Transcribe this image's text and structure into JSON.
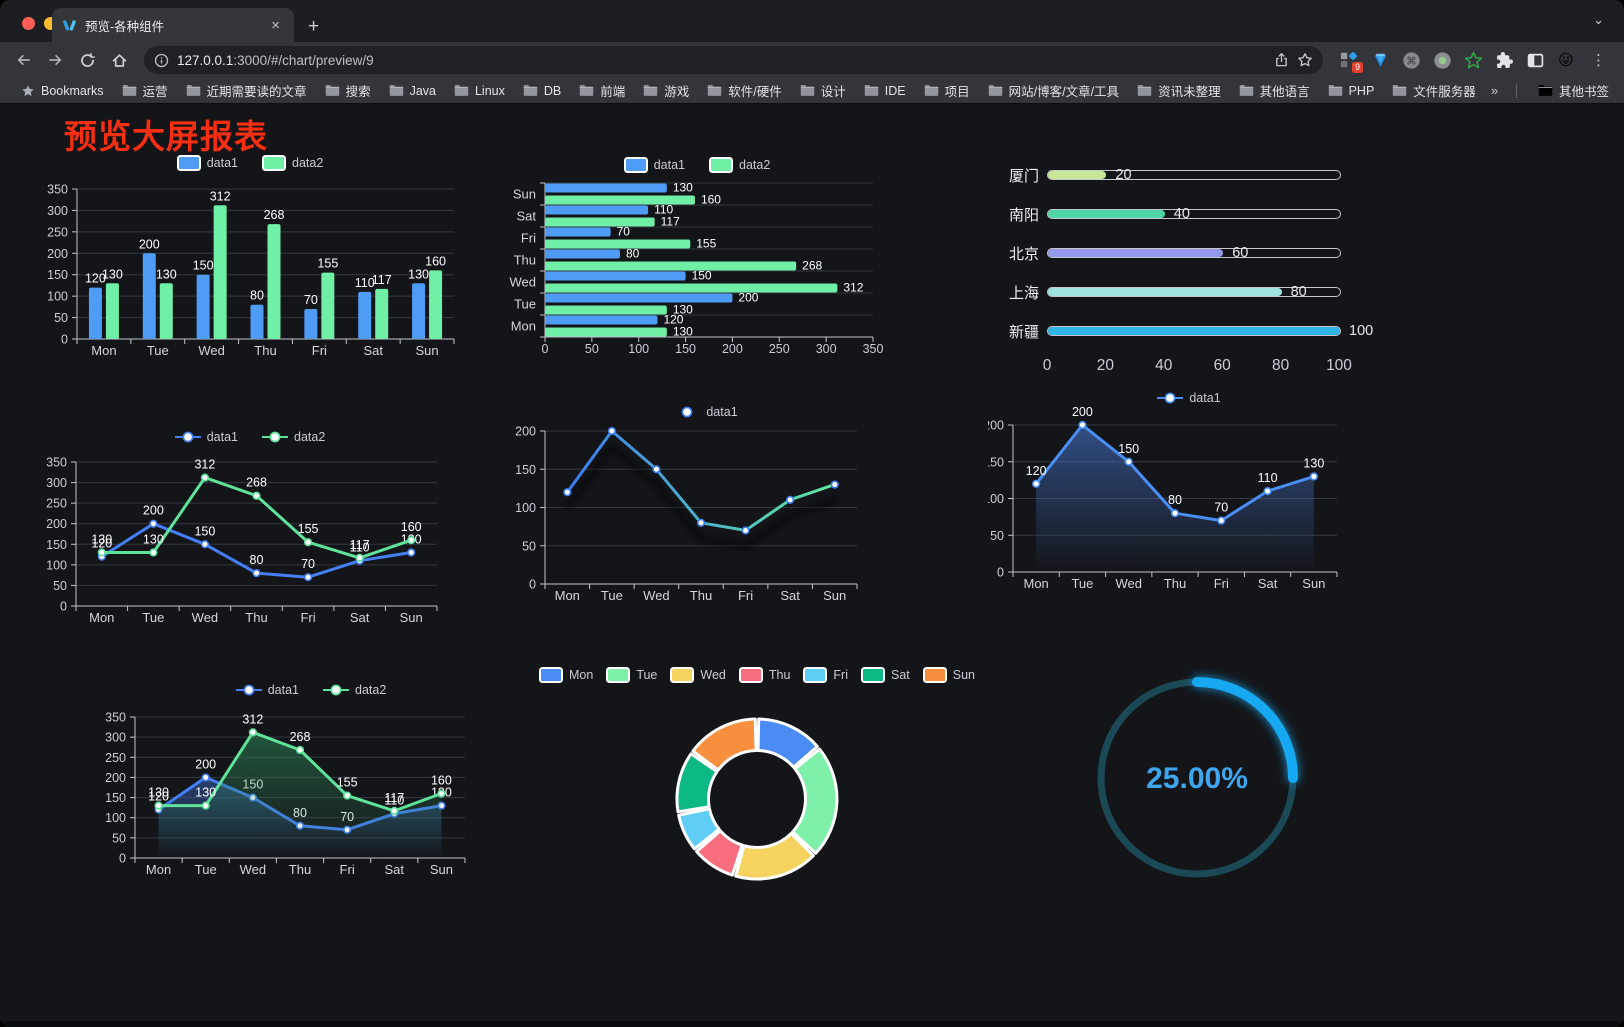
{
  "browser": {
    "traffic_lights": [
      "#ff5f57",
      "#febc2e",
      "#28c840"
    ],
    "tab_title": "预览-各种组件",
    "tab_close_glyph": "×",
    "new_tab_glyph": "+",
    "tab_list_chevron": "⌄",
    "url": {
      "host": "127.0.0.1",
      "rest": ":3000/#/chart/preview/9"
    },
    "extension_badge": "9",
    "profile_emoji": "😜",
    "menu_dots_glyph": "⋮",
    "bookmarks_bar": {
      "bookmarks_label": "Bookmarks",
      "folders": [
        "运营",
        "近期需要读的文章",
        "搜索",
        "Java",
        "Linux",
        "DB",
        "前端",
        "游戏",
        "软件/硬件",
        "设计",
        "IDE",
        "项目",
        "网站/博客/文章/工具",
        "资讯未整理",
        "其他语言",
        "PHP",
        "文件服务器"
      ],
      "overflow_chevron": "»",
      "other_bookmarks": "其他书签"
    }
  },
  "page": {
    "title": "预览大屏报表",
    "title_color": "#f62e12",
    "background": "#141519"
  },
  "theme": {
    "axis_color": "#c2c5cf",
    "grid_color": "#353842",
    "tick_label_color": "#ccced8",
    "category_label_color": "#d4d6de",
    "value_label_color": "#ffffff",
    "legend_text_color": "#c9ccd4"
  },
  "chart_data": [
    {
      "id": "c1",
      "type": "bar",
      "title": "",
      "categories": [
        "Mon",
        "Tue",
        "Wed",
        "Thu",
        "Fri",
        "Sat",
        "Sun"
      ],
      "series": [
        {
          "name": "data1",
          "color": "#4f9cf6",
          "values": [
            120,
            200,
            150,
            80,
            70,
            110,
            130
          ]
        },
        {
          "name": "data2",
          "color": "#70f0a6",
          "values": [
            130,
            130,
            312,
            268,
            155,
            117,
            160
          ]
        }
      ],
      "ylim": [
        0,
        350
      ],
      "yticks": [
        0,
        50,
        100,
        150,
        200,
        250,
        300,
        350
      ],
      "value_labels": true,
      "legend_position": "top",
      "grid": true
    },
    {
      "id": "c2",
      "type": "bar-horizontal",
      "categories": [
        "Mon",
        "Tue",
        "Wed",
        "Thu",
        "Fri",
        "Sat",
        "Sun"
      ],
      "display_order_top_to_bottom": [
        "Sun",
        "Sat",
        "Fri",
        "Thu",
        "Wed",
        "Tue",
        "Mon"
      ],
      "series": [
        {
          "name": "data1",
          "color": "#4f9cf6",
          "values": [
            120,
            200,
            150,
            80,
            70,
            110,
            130
          ]
        },
        {
          "name": "data2",
          "color": "#70f0a6",
          "values": [
            130,
            130,
            312,
            268,
            155,
            117,
            160
          ]
        }
      ],
      "xlim": [
        0,
        350
      ],
      "xticks": [
        0,
        50,
        100,
        150,
        200,
        250,
        300,
        350
      ],
      "value_labels": true,
      "legend_position": "top",
      "grid": true
    },
    {
      "id": "c3",
      "type": "progress",
      "items": [
        {
          "label": "厦门",
          "value": 20,
          "color": "#c5e796"
        },
        {
          "label": "南阳",
          "value": 40,
          "color": "#4fd6a7"
        },
        {
          "label": "北京",
          "value": 60,
          "color": "#9599ea"
        },
        {
          "label": "上海",
          "value": 80,
          "color": "#9fe4e0"
        },
        {
          "label": "新疆",
          "value": 100,
          "color": "#33b4e6"
        }
      ],
      "max": 100,
      "xticks": [
        0,
        20,
        40,
        60,
        80,
        100
      ]
    },
    {
      "id": "c4",
      "type": "line",
      "categories": [
        "Mon",
        "Tue",
        "Wed",
        "Thu",
        "Fri",
        "Sat",
        "Sun"
      ],
      "series": [
        {
          "name": "data1",
          "color": "#447ff5",
          "values": [
            120,
            200,
            150,
            80,
            70,
            110,
            130
          ]
        },
        {
          "name": "data2",
          "color": "#5fe39a",
          "values": [
            130,
            130,
            312,
            268,
            155,
            117,
            160
          ]
        }
      ],
      "ylim": [
        0,
        350
      ],
      "yticks": [
        0,
        50,
        100,
        150,
        200,
        250,
        300,
        350
      ],
      "value_labels": true,
      "legend_position": "top",
      "grid": true
    },
    {
      "id": "c5",
      "type": "line",
      "categories": [
        "Mon",
        "Tue",
        "Wed",
        "Thu",
        "Fri",
        "Sat",
        "Sun"
      ],
      "series": [
        {
          "name": "data1",
          "color_start": "#3a7bf2",
          "color_end": "#5fe9a1",
          "values": [
            120,
            200,
            150,
            80,
            70,
            110,
            130
          ]
        }
      ],
      "ylim": [
        0,
        200
      ],
      "yticks": [
        0,
        50,
        100,
        150,
        200
      ],
      "value_labels": false,
      "shadow": true,
      "legend_position": "top",
      "grid": true
    },
    {
      "id": "c6",
      "type": "area",
      "categories": [
        "Mon",
        "Tue",
        "Wed",
        "Thu",
        "Fri",
        "Sat",
        "Sun"
      ],
      "series": [
        {
          "name": "data1",
          "color": "#4a8ff5",
          "values": [
            120,
            200,
            150,
            80,
            70,
            110,
            130
          ],
          "area_from": "rgba(74,125,220,0.55)",
          "area_to": "rgba(74,125,220,0)"
        }
      ],
      "ylim": [
        0,
        200
      ],
      "yticks": [
        0,
        50,
        100,
        150,
        200
      ],
      "value_labels": true,
      "legend_position": "top",
      "grid": true
    },
    {
      "id": "c7",
      "type": "area",
      "categories": [
        "Mon",
        "Tue",
        "Wed",
        "Thu",
        "Fri",
        "Sat",
        "Sun"
      ],
      "series": [
        {
          "name": "data1",
          "color": "#447ff5",
          "values": [
            120,
            200,
            150,
            80,
            70,
            110,
            130
          ],
          "area_from": "rgba(64,110,200,0.5)",
          "area_to": "rgba(64,110,200,0)"
        },
        {
          "name": "data2",
          "color": "#5fe39a",
          "values": [
            130,
            130,
            312,
            268,
            155,
            117,
            160
          ],
          "area_from": "rgba(46,140,90,0.55)",
          "area_to": "rgba(46,140,90,0)"
        }
      ],
      "ylim": [
        0,
        350
      ],
      "yticks": [
        0,
        50,
        100,
        150,
        200,
        250,
        300,
        350
      ],
      "value_labels": true,
      "legend_position": "top",
      "grid": true
    },
    {
      "id": "c8",
      "type": "donut",
      "labels": [
        "Mon",
        "Tue",
        "Wed",
        "Thu",
        "Fri",
        "Sat",
        "Sun"
      ],
      "values": [
        120,
        200,
        150,
        80,
        70,
        110,
        130
      ],
      "colors": [
        "#4b8bf4",
        "#7ff0aa",
        "#f6d35f",
        "#f96e7e",
        "#5fcdf6",
        "#0cb884",
        "#f78f3f"
      ],
      "border_color": "#ffffff",
      "legend_position": "top"
    },
    {
      "id": "c9",
      "type": "gauge",
      "value": 25,
      "display": "25.00%",
      "track_color": "#1c4956",
      "progress_color": "#12a8f0",
      "text_color": "#3fa6ee"
    }
  ]
}
